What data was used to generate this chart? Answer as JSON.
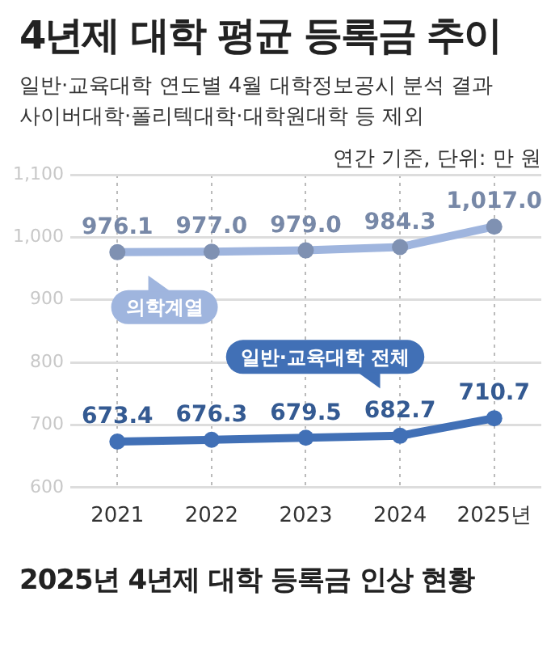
{
  "chart_data": {
    "type": "line",
    "title": "4년제 대학 평균 등록금 추이",
    "subtitle": "일반·교육대학 연도별 4월 대학정보공시 분석 결과\n사이버대학·폴리텍대학·대학원대학 등 제외",
    "ylabel": "연간 기준, 단위: 만 원",
    "annotations": [
      "2025년 4년제 대학 등록금 인상 현황"
    ],
    "categories": [
      "2021",
      "2022",
      "2023",
      "2024",
      "2025년"
    ],
    "series": [
      {
        "name": "의학계열",
        "color": "#9fb5de",
        "values": [
          976.1,
          977.0,
          979.0,
          984.3,
          1017.0
        ],
        "value_labels": [
          "976.1",
          "977.0",
          "979.0",
          "984.3",
          "1,017.0"
        ]
      },
      {
        "name": "일반·교육대학 전체",
        "color": "#4170b6",
        "values": [
          673.4,
          676.3,
          679.5,
          682.7,
          710.7
        ],
        "value_labels": [
          "673.4",
          "676.3",
          "679.5",
          "682.7",
          "710.7"
        ]
      }
    ],
    "ylim": [
      600,
      1100
    ],
    "yticks": [
      600,
      700,
      800,
      900,
      {
        "value": 1000,
        "label": "1,000"
      },
      {
        "value": 1100,
        "label": "1,100"
      }
    ],
    "grid": true,
    "legend": "left",
    "marker": "circle",
    "line_style": "solid"
  }
}
